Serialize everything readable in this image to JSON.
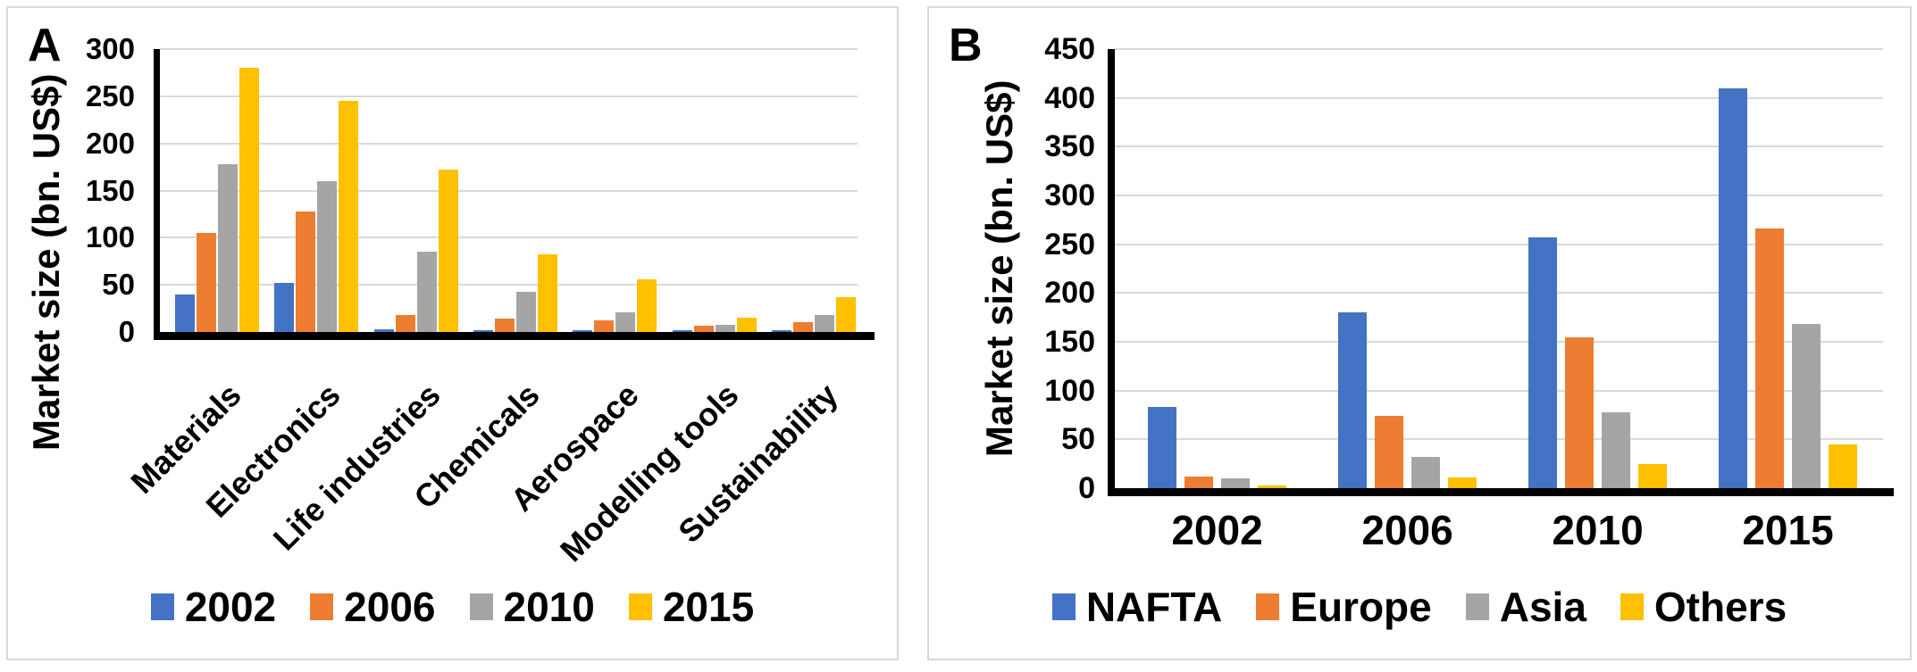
{
  "figure": {
    "panels": {
      "a_label": "A",
      "b_label": "B"
    }
  },
  "chart_data": [
    {
      "id": "A",
      "type": "bar",
      "title": "",
      "ylabel": "Market size (bn. US$)",
      "xlabel": "",
      "ylim": [
        0,
        300
      ],
      "yticks": [
        0,
        50,
        100,
        150,
        200,
        250,
        300
      ],
      "grid": true,
      "legend_position": "bottom",
      "categories": [
        "Materials",
        "Electronics",
        "Life industries",
        "Chemicals",
        "Aerospace",
        "Modelling tools",
        "Sustainability"
      ],
      "series": [
        {
          "name": "2002",
          "color": "#4472C4",
          "values": [
            40,
            52,
            3,
            2,
            1,
            1,
            1
          ]
        },
        {
          "name": "2006",
          "color": "#ED7D31",
          "values": [
            105,
            128,
            18,
            14,
            12,
            7,
            10
          ]
        },
        {
          "name": "2010",
          "color": "#A5A5A5",
          "values": [
            178,
            160,
            85,
            43,
            21,
            8,
            18
          ]
        },
        {
          "name": "2015",
          "color": "#FFC000",
          "values": [
            280,
            245,
            172,
            82,
            56,
            15,
            37
          ]
        }
      ]
    },
    {
      "id": "B",
      "type": "bar",
      "title": "",
      "ylabel": "Market size (bn. US$)",
      "xlabel": "",
      "ylim": [
        0,
        450
      ],
      "yticks": [
        0,
        50,
        100,
        150,
        200,
        250,
        300,
        350,
        400,
        450
      ],
      "grid": true,
      "legend_position": "bottom",
      "categories": [
        "2002",
        "2006",
        "2010",
        "2015"
      ],
      "series": [
        {
          "name": "NAFTA",
          "color": "#4472C4",
          "values": [
            83,
            180,
            257,
            410
          ]
        },
        {
          "name": "Europe",
          "color": "#ED7D31",
          "values": [
            12,
            74,
            155,
            266
          ]
        },
        {
          "name": "Asia",
          "color": "#A5A5A5",
          "values": [
            10,
            32,
            78,
            168
          ]
        },
        {
          "name": "Others",
          "color": "#FFC000",
          "values": [
            3,
            11,
            25,
            45
          ]
        }
      ]
    }
  ]
}
